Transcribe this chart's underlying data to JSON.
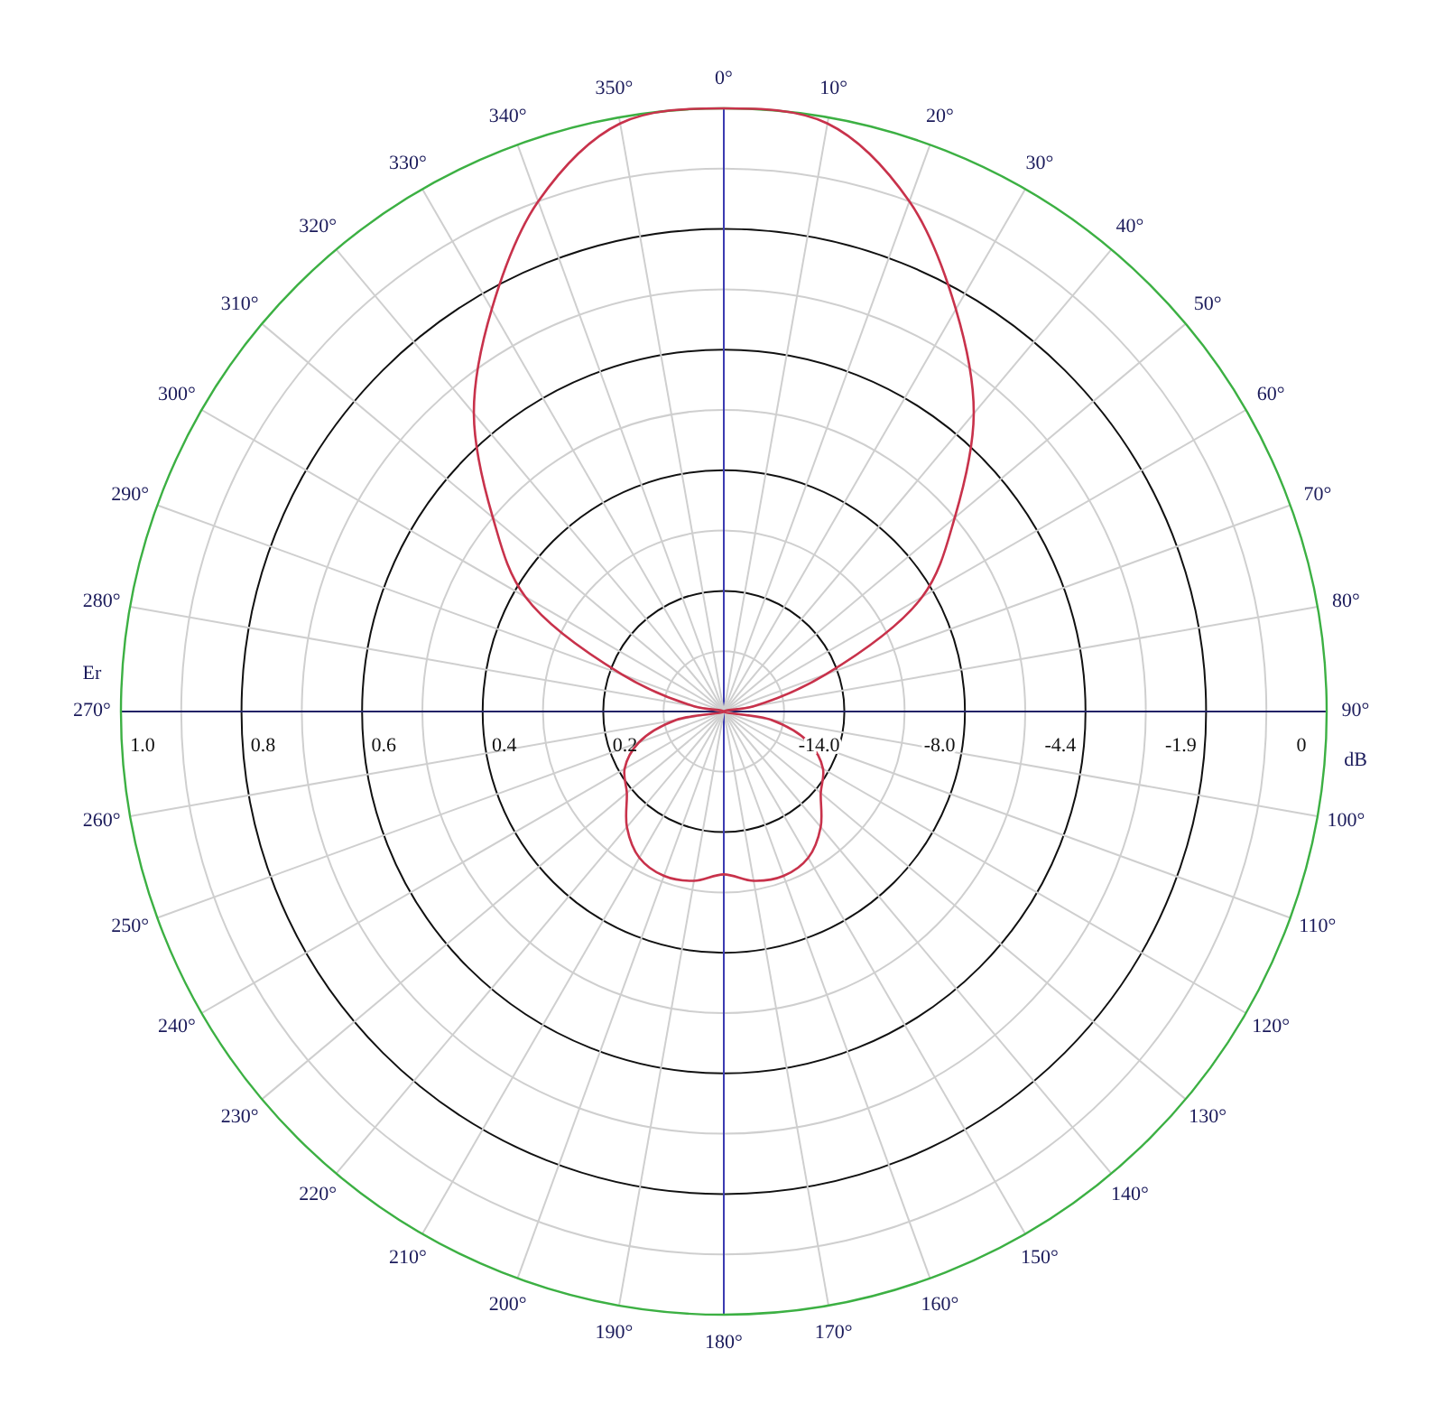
{
  "chart_data": {
    "type": "radar",
    "categories": [
      "0°",
      "10°",
      "20°",
      "30°",
      "40°",
      "50°",
      "60°",
      "70°",
      "80°",
      "90°",
      "100°",
      "110°",
      "120°",
      "130°",
      "140°",
      "150°",
      "160°",
      "170°",
      "180°",
      "190°",
      "200°",
      "210°",
      "220°",
      "230°",
      "240°",
      "250°",
      "260°",
      "270°",
      "280°",
      "290°",
      "300°",
      "310°",
      "320°",
      "330°",
      "340°",
      "350°"
    ],
    "series": [
      {
        "color": "#c8324b",
        "values": [
          1.0,
          0.99,
          0.9,
          0.77,
          0.645,
          0.5,
          0.38,
          0.18,
          0.05,
          0.0,
          0.08,
          0.15,
          0.19,
          0.21,
          0.25,
          0.28,
          0.29,
          0.285,
          0.27,
          0.285,
          0.29,
          0.28,
          0.25,
          0.21,
          0.19,
          0.15,
          0.08,
          0.0,
          0.05,
          0.18,
          0.38,
          0.5,
          0.645,
          0.77,
          0.9,
          0.99
        ]
      }
    ],
    "ylim": [
      0,
      1
    ],
    "yticks": [
      {
        "value": 0.2,
        "label": "0.2"
      },
      {
        "value": 0.4,
        "label": "0.4"
      },
      {
        "value": 0.6,
        "label": "0.6"
      },
      {
        "value": 0.8,
        "label": "0.8"
      },
      {
        "value": 1.0,
        "label": "1.0"
      }
    ],
    "annotations": [
      "-14.0",
      "-8.0",
      "-4.4",
      "-1.9",
      "0"
    ],
    "ylabel": "Er",
    "y2label": "dB",
    "grid": true
  }
}
